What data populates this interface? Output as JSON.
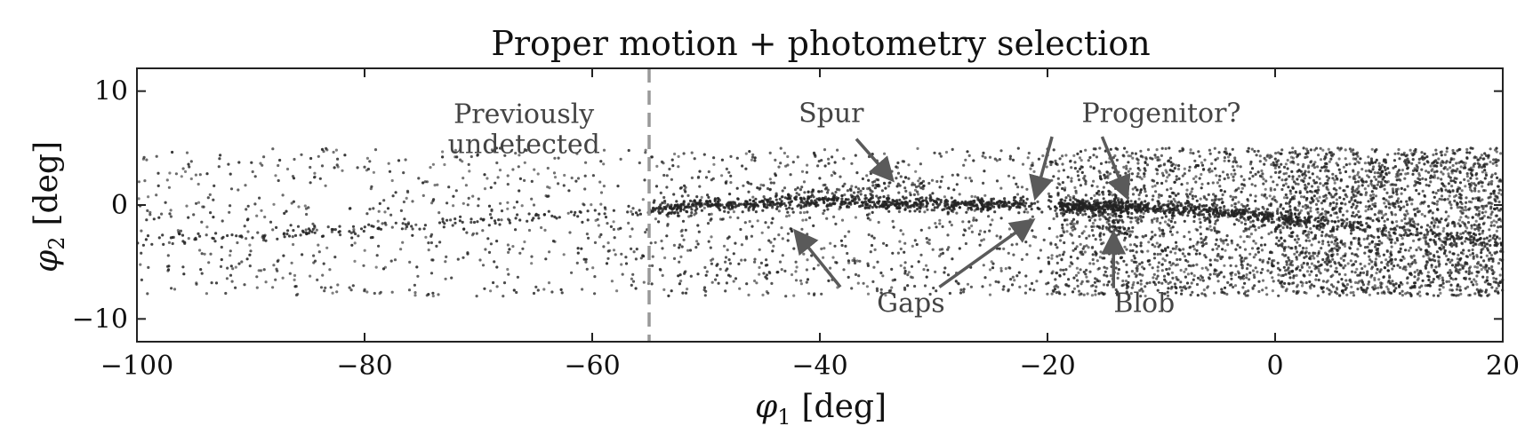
{
  "chart_data": {
    "type": "scatter",
    "title": "Proper motion + photometry selection",
    "xlabel_symbol": "φ",
    "xlabel_sub": "1",
    "xlabel_unit": "[deg]",
    "ylabel_symbol": "φ",
    "ylabel_sub": "2",
    "ylabel_unit": "[deg]",
    "xlim": [
      -100,
      20
    ],
    "ylim": [
      -12,
      12
    ],
    "x_ticks": [
      -100,
      -80,
      -60,
      -40,
      -20,
      0,
      20
    ],
    "x_tick_labels": [
      "−100",
      "−80",
      "−60",
      "−40",
      "−20",
      "0",
      "20"
    ],
    "y_ticks": [
      -10,
      0,
      10
    ],
    "y_tick_labels": [
      "−10",
      "0",
      "10"
    ],
    "grid": false,
    "marker_color": "#222222",
    "background": {
      "x_range": [
        -100,
        20
      ],
      "y_range": [
        -8,
        5
      ],
      "density_segments": [
        {
          "x_from": -100,
          "x_to": -55,
          "count": 620
        },
        {
          "x_from": -55,
          "x_to": -20,
          "count": 780
        },
        {
          "x_from": -20,
          "x_to": 0,
          "count": 1300
        },
        {
          "x_from": 0,
          "x_to": 20,
          "count": 2100
        }
      ]
    },
    "stream_track": {
      "x": [
        -100,
        -90,
        -80,
        -70,
        -60,
        -55,
        -50,
        -40,
        -30,
        -22,
        -20,
        -15,
        -10,
        -5,
        0,
        5,
        10,
        15,
        20
      ],
      "y": [
        -3.2,
        -2.8,
        -2.0,
        -1.4,
        -0.9,
        -0.5,
        0.0,
        0.3,
        0.1,
        0.0,
        -0.1,
        -0.1,
        -0.3,
        -0.6,
        -1.1,
        -1.6,
        -2.2,
        -2.8,
        -3.3
      ],
      "width": 0.55
    },
    "stream_density": [
      {
        "x_from": -100,
        "x_to": -55,
        "count": 140
      },
      {
        "x_from": -55,
        "x_to": -36,
        "count": 380
      },
      {
        "x_from": -36,
        "x_to": -22,
        "count": 330
      },
      {
        "x_from": -22,
        "x_to": -19,
        "count": 15
      },
      {
        "x_from": -19,
        "x_to": -11,
        "count": 330
      },
      {
        "x_from": -11,
        "x_to": 3,
        "count": 300
      },
      {
        "x_from": 3,
        "x_to": 20,
        "count": 120
      }
    ],
    "spur": {
      "x_from": -45,
      "x_to": -30,
      "y_from": 0.9,
      "y_to": 2.0,
      "count": 90
    },
    "blob": {
      "x": -14,
      "y": -1.5,
      "radius": 2.0,
      "count": 70
    },
    "previously_undetected_boundary": -55,
    "annotations": [
      {
        "text_lines": [
          "Previously",
          "undetected"
        ],
        "x": -66,
        "y": 7.2
      },
      {
        "text_lines": [
          "Spur"
        ],
        "x": -39,
        "y": 7.3
      },
      {
        "text_lines": [
          "Progenitor?"
        ],
        "x": -10,
        "y": 7.3
      },
      {
        "text_lines": [
          "Gaps"
        ],
        "x": -32,
        "y": -9.4
      },
      {
        "text_lines": [
          "Blob"
        ],
        "x": -11.5,
        "y": -9.4
      }
    ],
    "arrows": [
      {
        "from": [
          -36.8,
          5.8
        ],
        "to": [
          -33.8,
          2.4
        ]
      },
      {
        "from": [
          -19.6,
          6.0
        ],
        "to": [
          -21.0,
          0.9
        ]
      },
      {
        "from": [
          -15.2,
          6.0
        ],
        "to": [
          -13.1,
          0.9
        ]
      },
      {
        "from": [
          -38.2,
          -7.2
        ],
        "to": [
          -42.0,
          -2.5
        ]
      },
      {
        "from": [
          -29.5,
          -7.2
        ],
        "to": [
          -21.5,
          -1.5
        ]
      },
      {
        "from": [
          -14.2,
          -7.3
        ],
        "to": [
          -14.2,
          -2.7
        ]
      }
    ]
  }
}
